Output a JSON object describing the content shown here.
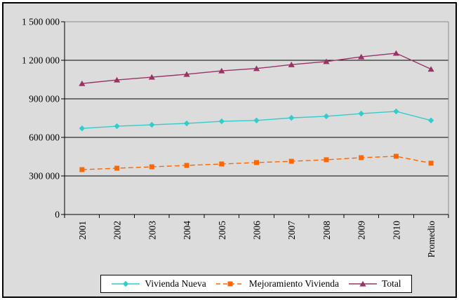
{
  "chart": {
    "background_color": "#DCDCDC",
    "plot_border_color": "#8C8C8C",
    "axis_color": "#000000",
    "gridline_color": "#000000",
    "legend_background": "#FFFFFF",
    "text_color": "#000000"
  },
  "chart_data": {
    "type": "line",
    "title": "",
    "xlabel": "",
    "ylabel": "",
    "categories": [
      "2001",
      "2002",
      "2003",
      "2004",
      "2005",
      "2006",
      "2007",
      "2008",
      "2009",
      "2010",
      "Promedio"
    ],
    "series": [
      {
        "name": "Vivienda Nueva",
        "color": "#33CCCC",
        "marker": "diamond",
        "dash": "solid",
        "values": [
          670000,
          687000,
          698000,
          709000,
          725000,
          732000,
          752000,
          764000,
          785000,
          802000,
          732000
        ]
      },
      {
        "name": "Mejoramiento Vivienda",
        "color": "#FF6600",
        "marker": "square",
        "dash": "dashed",
        "values": [
          349000,
          360000,
          371000,
          382000,
          393000,
          404000,
          414000,
          426000,
          442000,
          453000,
          399000
        ]
      },
      {
        "name": "Total",
        "color": "#993366",
        "marker": "triangle",
        "dash": "solid",
        "values": [
          1019000,
          1047000,
          1069000,
          1091000,
          1118000,
          1136000,
          1166000,
          1190000,
          1227000,
          1255000,
          1131000
        ]
      }
    ],
    "ylim": [
      0,
      1500000
    ],
    "ytick_step": 300000,
    "ytick_labels": [
      "0",
      "300 000",
      "600 000",
      "900 000",
      "1 200 000",
      "1 500 000"
    ],
    "grid": true,
    "legend_position": "bottom"
  }
}
